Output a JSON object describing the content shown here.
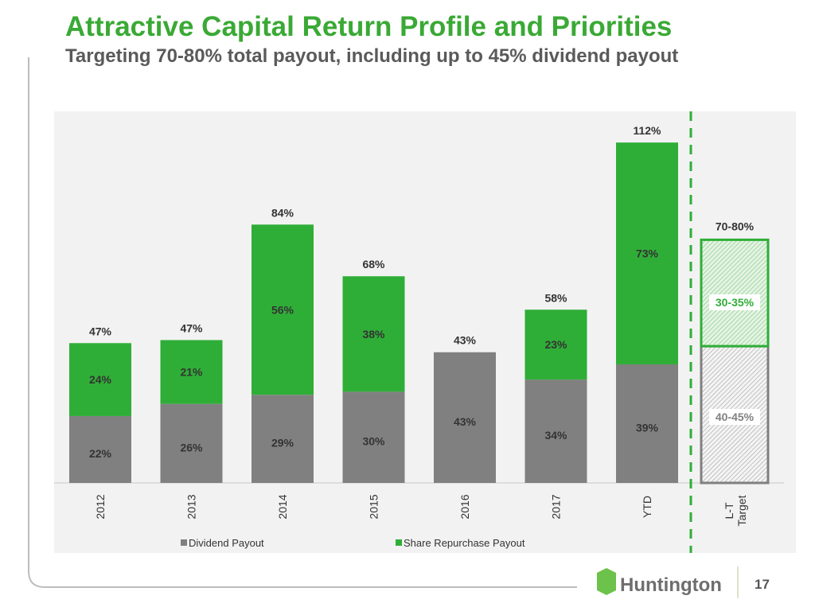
{
  "title": "Attractive Capital Return Profile and Priorities",
  "subtitle": "Targeting 70-80% total payout, including up to 45% dividend payout",
  "page_number": "17",
  "logo_text": "Huntington",
  "colors": {
    "dividend": "#808080",
    "repurchase": "#2fae37",
    "title": "#3aa935"
  },
  "chart_data": {
    "type": "bar",
    "stacked": true,
    "categories": [
      "2012",
      "2013",
      "2014",
      "2015",
      "2016",
      "2017",
      "YTD"
    ],
    "series": [
      {
        "name": "Dividend Payout",
        "values": [
          22,
          26,
          29,
          30,
          43,
          34,
          39
        ],
        "labels": [
          "22%",
          "26%",
          "29%",
          "30%",
          "43%",
          "34%",
          "39%"
        ]
      },
      {
        "name": "Share Repurchase Payout",
        "values": [
          24,
          21,
          56,
          38,
          0,
          23,
          73
        ],
        "labels": [
          "24%",
          "21%",
          "56%",
          "38%",
          "",
          "23%",
          "73%"
        ]
      }
    ],
    "totals": [
      "47%",
      "47%",
      "84%",
      "68%",
      "43%",
      "58%",
      "112%"
    ],
    "target": {
      "category": "L-T Target",
      "category_lines": [
        "L-T",
        "Target"
      ],
      "dividend_range": [
        40,
        45
      ],
      "dividend_label": "40-45%",
      "repurchase_range": [
        30,
        35
      ],
      "repurchase_label": "30-35%",
      "total_label": "70-80%"
    },
    "ylim": [
      0,
      115
    ],
    "legend": [
      "Dividend Payout",
      "Share Repurchase Payout"
    ],
    "legend_position": "bottom"
  }
}
